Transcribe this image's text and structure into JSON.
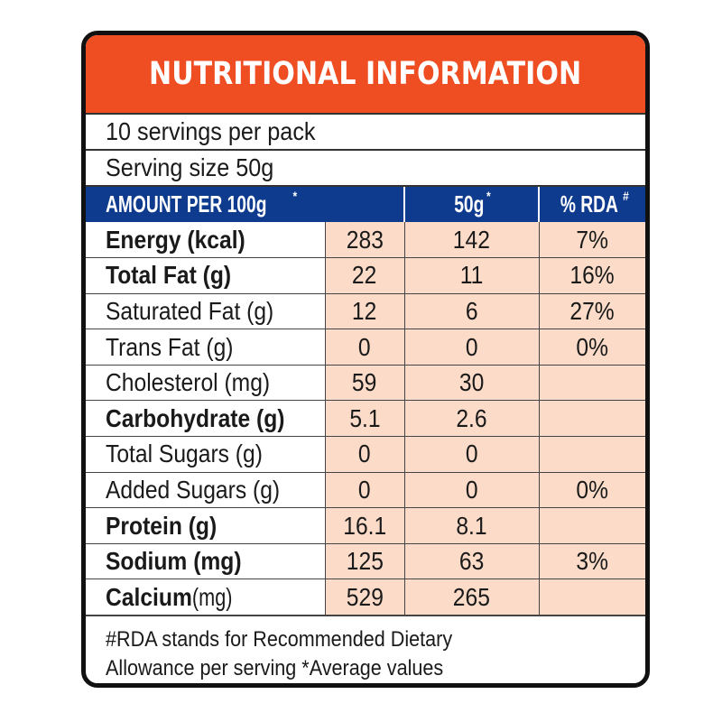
{
  "title": "NUTRITIONAL INFORMATION",
  "servings_per_pack": "10 servings per pack",
  "serving_size": "Serving size  50g",
  "headers": {
    "col1": "AMOUNT PER  100g",
    "col1_mark": "*",
    "col2": "50g",
    "col2_mark": "*",
    "col3": "% RDA",
    "col3_mark": "#"
  },
  "rows": [
    {
      "name": "Energy (kcal)",
      "bold": true,
      "per100g": "283",
      "per50g": "142",
      "rda": "7%"
    },
    {
      "name": "Total Fat (g)",
      "bold": true,
      "per100g": "22",
      "per50g": "11",
      "rda": "16%"
    },
    {
      "name": "Saturated Fat (g)",
      "bold": false,
      "per100g": "12",
      "per50g": "6",
      "rda": "27%"
    },
    {
      "name": "Trans Fat (g)",
      "bold": false,
      "per100g": "0",
      "per50g": "0",
      "rda": "0%"
    },
    {
      "name": "Cholesterol (mg)",
      "bold": false,
      "per100g": "59",
      "per50g": "30",
      "rda": ""
    },
    {
      "name": "Carbohydrate (g)",
      "bold": true,
      "per100g": "5.1",
      "per50g": "2.6",
      "rda": ""
    },
    {
      "name": "Total Sugars (g)",
      "bold": false,
      "per100g": "0",
      "per50g": "0",
      "rda": ""
    },
    {
      "name": "Added Sugars (g)",
      "bold": false,
      "per100g": "0",
      "per50g": "0",
      "rda": "0%"
    },
    {
      "name": "Protein (g)",
      "bold": true,
      "per100g": "16.1",
      "per50g": "8.1",
      "rda": ""
    },
    {
      "name": "Sodium (mg)",
      "bold": true,
      "per100g": "125",
      "per50g": "63",
      "rda": "3%"
    },
    {
      "name_bold": "Calcium",
      "name_rest": " (mg)",
      "bold": true,
      "per100g": "529",
      "per50g": "265",
      "rda": ""
    }
  ],
  "footer": {
    "line1": "#RDA stands for Recommended Dietary",
    "line2": "Allowance per serving *Average values"
  },
  "colors": {
    "title_bg": "#ef4d22",
    "header_bg": "#0f3b8e",
    "value_cell_bg": "#fcdcc9",
    "border": "#111111"
  }
}
